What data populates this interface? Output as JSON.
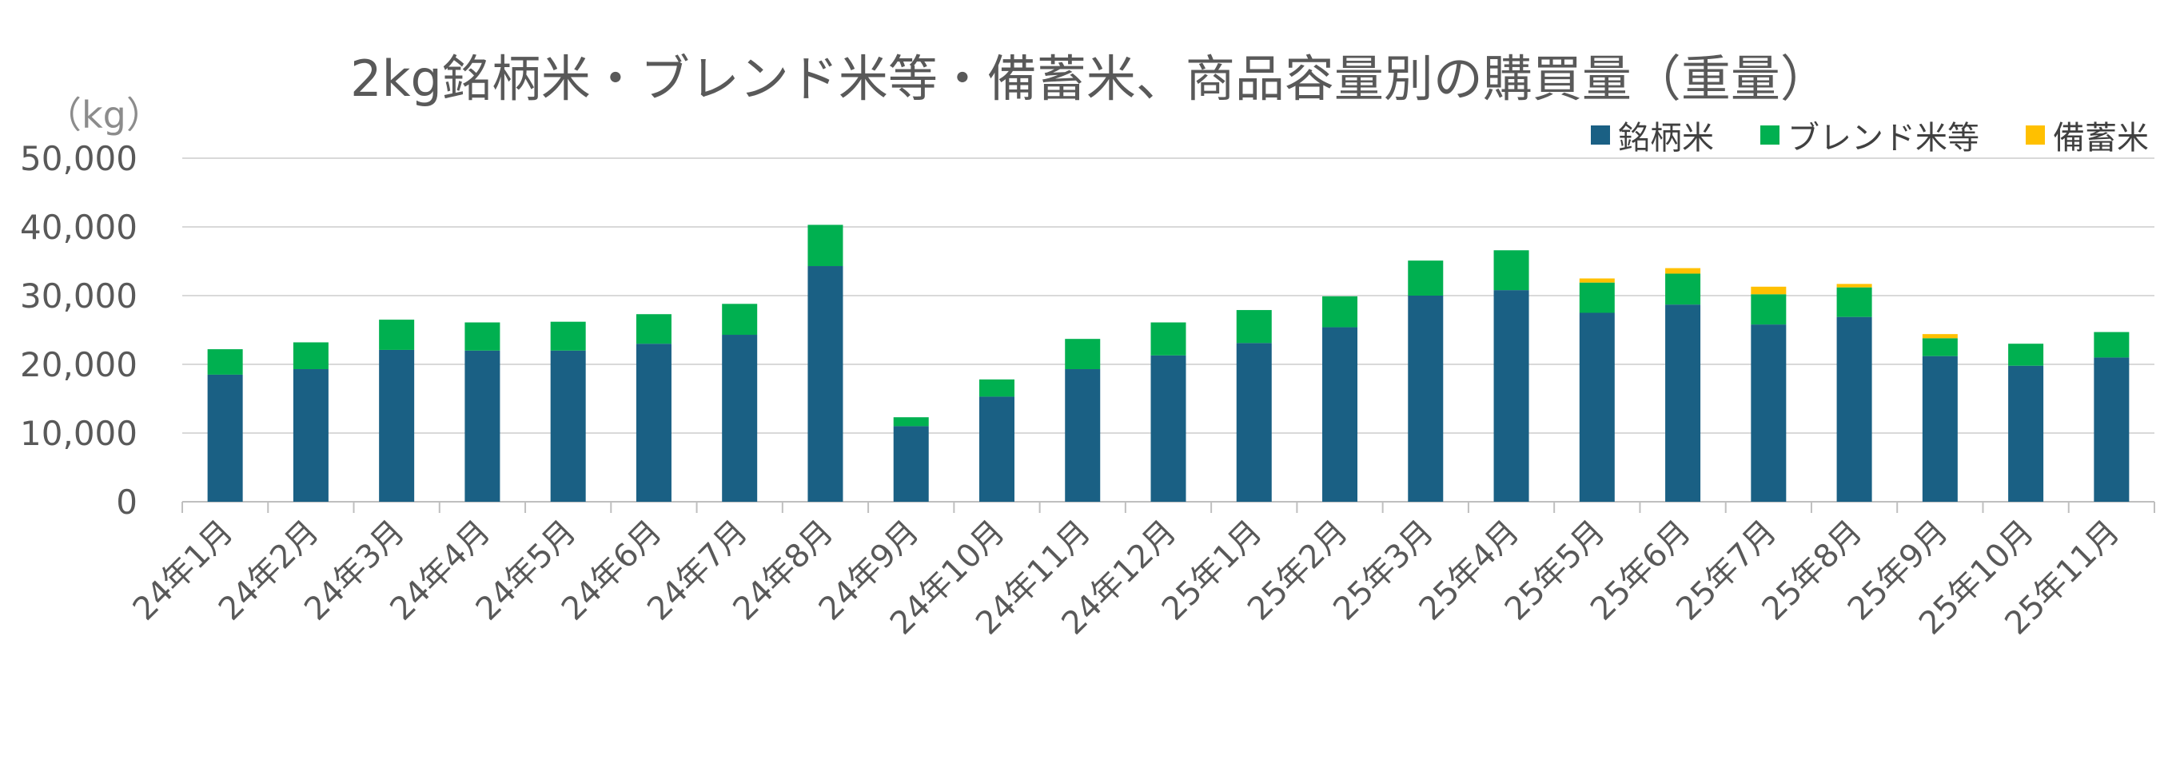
{
  "chart_data": {
    "type": "bar",
    "stacked": true,
    "title": "2kg銘柄米・ブレンド米等・備蓄米、商品容量別の購買量（重量）",
    "ylabel": "（kg）",
    "xlabel": "",
    "ylim": [
      0,
      50000
    ],
    "yticks": [
      0,
      10000,
      20000,
      30000,
      40000,
      50000
    ],
    "ytick_labels": [
      "0",
      "10,000",
      "20,000",
      "30,000",
      "40,000",
      "50,000"
    ],
    "grid": true,
    "legend_position": "top-right",
    "categories": [
      "24年1月",
      "24年2月",
      "24年3月",
      "24年4月",
      "24年5月",
      "24年6月",
      "24年7月",
      "24年8月",
      "24年9月",
      "24年10月",
      "24年11月",
      "24年12月",
      "25年1月",
      "25年2月",
      "25年3月",
      "25年4月",
      "25年5月",
      "25年6月",
      "25年7月",
      "25年8月",
      "25年9月",
      "25年10月",
      "25年11月"
    ],
    "series": [
      {
        "name": "銘柄米",
        "color": "#1a6084",
        "values": [
          18500,
          19300,
          22100,
          22000,
          22000,
          23000,
          24300,
          34300,
          11000,
          15300,
          19300,
          21300,
          23100,
          25400,
          30000,
          30800,
          27500,
          28700,
          25800,
          26900,
          21200,
          19800,
          21000
        ]
      },
      {
        "name": "ブレンド米等",
        "color": "#00b050",
        "values": [
          3700,
          3900,
          4400,
          4100,
          4200,
          4300,
          4500,
          6000,
          1300,
          2500,
          4400,
          4800,
          4800,
          4500,
          5100,
          5800,
          4400,
          4500,
          4400,
          4300,
          2600,
          3200,
          3700
        ]
      },
      {
        "name": "備蓄米",
        "color": "#ffc000",
        "values": [
          0,
          0,
          0,
          0,
          0,
          0,
          0,
          0,
          0,
          0,
          0,
          0,
          0,
          0,
          0,
          0,
          600,
          800,
          1100,
          500,
          600,
          0,
          0
        ]
      }
    ]
  }
}
